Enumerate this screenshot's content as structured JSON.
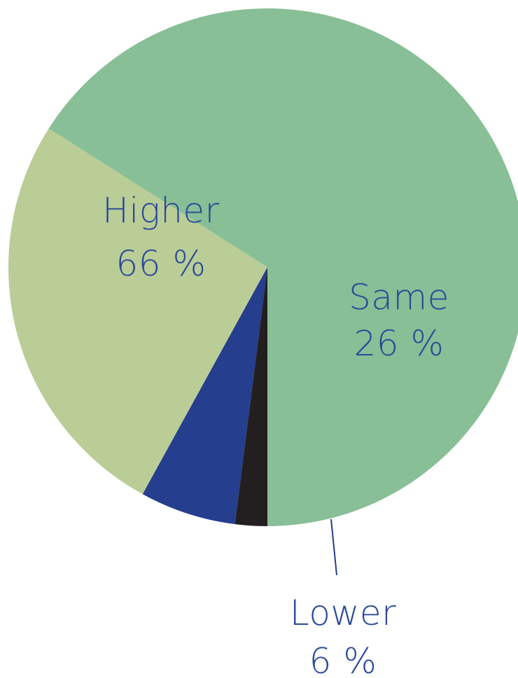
{
  "chart_data": {
    "type": "pie",
    "slices": [
      {
        "key": "higher",
        "label": "Higher",
        "value_label": "66 %",
        "value": 66,
        "color": "#88bf96",
        "text_color": "#2b4a9a"
      },
      {
        "key": "same",
        "label": "Same",
        "value_label": "26 %",
        "value": 26,
        "color": "#bacd96",
        "text_color": "#2b4a9a"
      },
      {
        "key": "lower",
        "label": "Lower",
        "value_label": "6 %",
        "value": 6,
        "color": "#253e8d",
        "text_color": "#2b4a9a"
      },
      {
        "key": "other",
        "label": "",
        "value_label": "",
        "value": 2,
        "color": "#231f20",
        "text_color": "#2b4a9a"
      }
    ],
    "start_angle_deg": 180,
    "direction": "counterclockwise",
    "leader_color": "#253e8d"
  }
}
